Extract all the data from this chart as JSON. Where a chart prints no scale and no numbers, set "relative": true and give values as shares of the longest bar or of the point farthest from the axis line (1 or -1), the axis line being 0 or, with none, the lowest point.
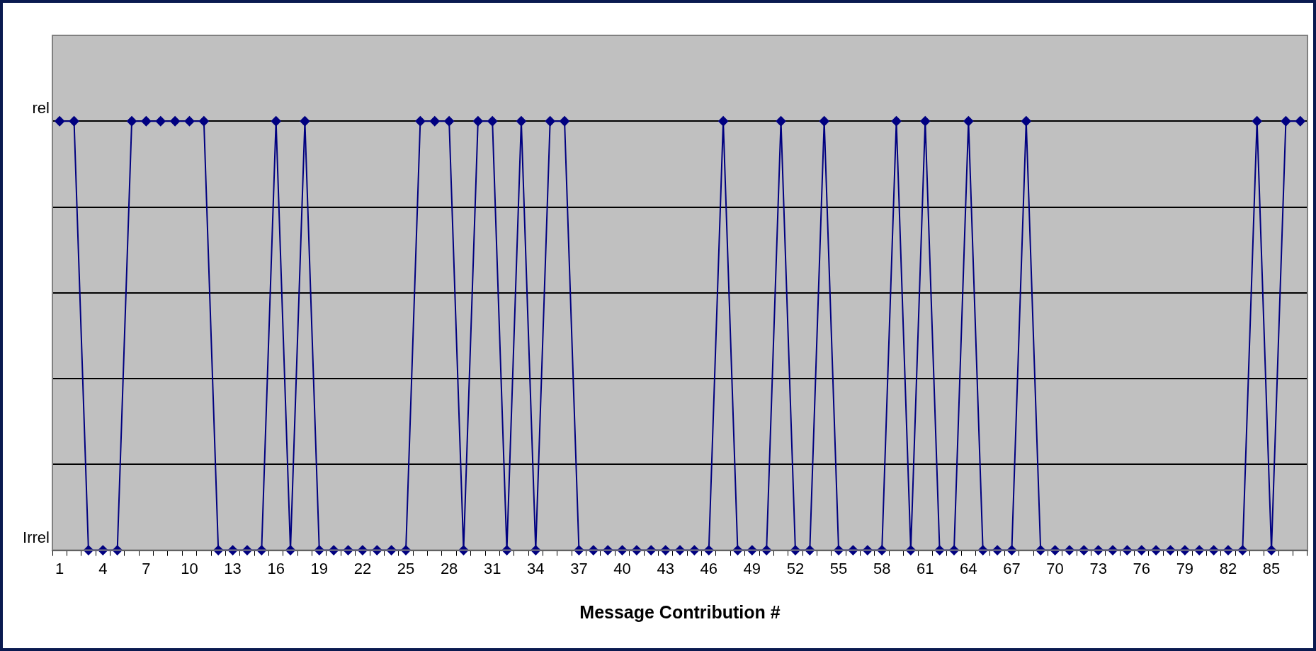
{
  "chart_data": {
    "type": "line",
    "xlabel": "Message Contribution #",
    "categories": [
      "1",
      null,
      null,
      "4",
      null,
      null,
      "7",
      null,
      null,
      "10",
      null,
      null,
      "13",
      null,
      null,
      "16",
      null,
      null,
      "19",
      null,
      null,
      "22",
      null,
      null,
      "25",
      null,
      null,
      "28",
      null,
      null,
      "31",
      null,
      null,
      "34",
      null,
      null,
      "37",
      null,
      null,
      "40",
      null,
      null,
      "43",
      null,
      null,
      "46",
      null,
      null,
      "49",
      null,
      null,
      "52",
      null,
      null,
      "55",
      null,
      null,
      "58",
      null,
      null,
      "61",
      null,
      null,
      "64",
      null,
      null,
      "67",
      null,
      null,
      "70",
      null,
      null,
      "73",
      null,
      null,
      "76",
      null,
      null,
      "79",
      null,
      null,
      "82",
      null,
      null,
      "85",
      null,
      null
    ],
    "series": [
      {
        "color": "#000080",
        "values": [
          1,
          1,
          0,
          0,
          0,
          1,
          1,
          1,
          1,
          1,
          1,
          0,
          0,
          0,
          0,
          1,
          0,
          1,
          0,
          0,
          0,
          0,
          0,
          0,
          0,
          1,
          1,
          1,
          0,
          1,
          1,
          0,
          1,
          0,
          1,
          1,
          0,
          0,
          0,
          0,
          0,
          0,
          0,
          0,
          0,
          0,
          1,
          0,
          0,
          0,
          1,
          0,
          0,
          1,
          0,
          0,
          0,
          0,
          1,
          0,
          1,
          0,
          0,
          1,
          0,
          0,
          0,
          1,
          0,
          0,
          0,
          0,
          0,
          0,
          0,
          0,
          0,
          0,
          0,
          0,
          0,
          0,
          0,
          1,
          0,
          1,
          1
        ]
      }
    ],
    "relative": true,
    "annotations": [
      "rel",
      "Irrel"
    ],
    "grid": "y",
    "legend": false,
    "marker": "diamond",
    "line_style": "solid"
  }
}
